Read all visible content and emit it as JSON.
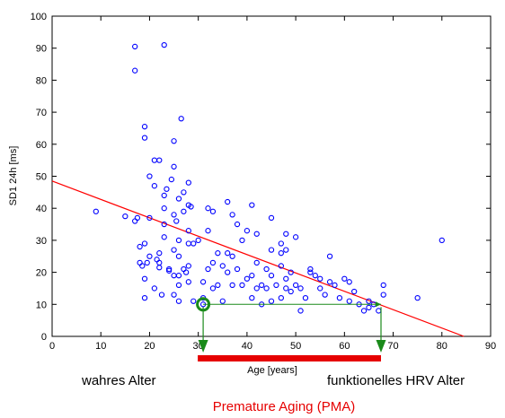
{
  "chart_data": {
    "type": "scatter",
    "xlabel": "Age [years]",
    "ylabel": "SD1 24h [ms]",
    "xlim": [
      0,
      90
    ],
    "ylim": [
      0,
      100
    ],
    "xticks": [
      "0",
      "10",
      "20",
      "30",
      "40",
      "50",
      "60",
      "70",
      "80",
      "90"
    ],
    "yticks": [
      "0",
      "10",
      "20",
      "30",
      "40",
      "50",
      "60",
      "70",
      "80",
      "90",
      "100"
    ],
    "grid": false,
    "colors": {
      "points": "#0000ff",
      "regression": "#ff0000",
      "arrows": "#1a8a1a",
      "pma_bar": "#e60000"
    },
    "regression": {
      "x": [
        0,
        84.5
      ],
      "y": [
        48.5,
        0
      ]
    },
    "highlight_point": {
      "x": 31,
      "y": 10
    },
    "arrow_target": {
      "x": 67.5,
      "y": 10
    },
    "pma_range": [
      31,
      67.5
    ],
    "annotations": {
      "true_age": "wahres Alter",
      "hrv_age": "funktionelles HRV Alter",
      "pma": "Premature Aging (PMA)"
    },
    "points": [
      [
        9,
        39
      ],
      [
        15,
        37.5
      ],
      [
        17,
        90.5
      ],
      [
        17,
        83
      ],
      [
        17,
        36
      ],
      [
        17.5,
        37
      ],
      [
        18,
        28
      ],
      [
        18,
        23
      ],
      [
        18.5,
        22
      ],
      [
        19,
        65.5
      ],
      [
        19,
        62
      ],
      [
        19,
        29
      ],
      [
        19,
        18
      ],
      [
        19,
        12
      ],
      [
        19.5,
        23
      ],
      [
        20,
        37
      ],
      [
        20,
        25
      ],
      [
        20,
        50
      ],
      [
        21,
        55
      ],
      [
        21,
        47
      ],
      [
        21,
        15
      ],
      [
        21.5,
        24
      ],
      [
        22,
        55
      ],
      [
        22,
        26
      ],
      [
        22,
        23
      ],
      [
        22,
        21.5
      ],
      [
        22.5,
        13
      ],
      [
        23,
        91
      ],
      [
        23,
        44
      ],
      [
        23,
        40
      ],
      [
        23,
        35
      ],
      [
        23,
        31
      ],
      [
        23.5,
        46
      ],
      [
        24,
        21
      ],
      [
        24,
        20.5
      ],
      [
        24.5,
        49
      ],
      [
        25,
        61
      ],
      [
        25,
        53
      ],
      [
        25,
        38
      ],
      [
        25,
        27
      ],
      [
        25,
        19
      ],
      [
        25,
        13
      ],
      [
        25.5,
        36
      ],
      [
        26,
        43
      ],
      [
        26,
        30
      ],
      [
        26,
        25
      ],
      [
        26,
        19
      ],
      [
        26,
        16
      ],
      [
        26,
        11
      ],
      [
        26.5,
        68
      ],
      [
        27,
        45
      ],
      [
        27,
        39
      ],
      [
        27,
        21
      ],
      [
        27.5,
        20
      ],
      [
        28,
        48
      ],
      [
        28,
        41
      ],
      [
        28,
        33
      ],
      [
        28,
        29
      ],
      [
        28,
        22
      ],
      [
        28,
        17
      ],
      [
        28.5,
        40.5
      ],
      [
        29,
        29
      ],
      [
        29,
        11
      ],
      [
        30,
        30
      ],
      [
        31,
        10
      ],
      [
        31,
        12
      ],
      [
        31,
        17
      ],
      [
        32,
        40
      ],
      [
        32,
        33
      ],
      [
        32,
        21
      ],
      [
        33,
        39
      ],
      [
        33,
        23
      ],
      [
        33,
        15
      ],
      [
        34,
        26
      ],
      [
        34,
        16
      ],
      [
        35,
        22
      ],
      [
        35,
        11
      ],
      [
        36,
        42
      ],
      [
        36,
        26
      ],
      [
        36,
        20
      ],
      [
        37,
        38
      ],
      [
        37,
        25
      ],
      [
        37,
        16
      ],
      [
        38,
        35
      ],
      [
        38,
        21
      ],
      [
        39,
        30
      ],
      [
        39,
        16
      ],
      [
        40,
        33
      ],
      [
        40,
        18
      ],
      [
        41,
        41
      ],
      [
        41,
        19
      ],
      [
        41,
        12
      ],
      [
        42,
        32
      ],
      [
        42,
        23
      ],
      [
        42,
        15
      ],
      [
        43,
        16
      ],
      [
        43,
        10
      ],
      [
        44,
        21
      ],
      [
        44,
        15
      ],
      [
        45,
        37
      ],
      [
        45,
        27
      ],
      [
        45,
        19
      ],
      [
        45,
        11
      ],
      [
        46,
        16
      ],
      [
        47,
        29
      ],
      [
        47,
        26
      ],
      [
        47,
        22
      ],
      [
        47,
        12
      ],
      [
        48,
        32
      ],
      [
        48,
        27
      ],
      [
        48,
        18
      ],
      [
        48,
        15
      ],
      [
        49,
        20
      ],
      [
        49,
        14
      ],
      [
        50,
        31
      ],
      [
        50,
        16
      ],
      [
        51,
        15
      ],
      [
        51,
        8
      ],
      [
        52,
        12
      ],
      [
        53,
        21
      ],
      [
        53,
        20
      ],
      [
        54,
        19
      ],
      [
        55,
        18
      ],
      [
        55,
        15
      ],
      [
        56,
        13
      ],
      [
        57,
        25
      ],
      [
        57,
        17
      ],
      [
        58,
        16
      ],
      [
        59,
        12
      ],
      [
        60,
        18
      ],
      [
        61,
        17
      ],
      [
        61,
        11
      ],
      [
        62,
        14
      ],
      [
        63,
        10
      ],
      [
        64,
        8
      ],
      [
        65,
        11
      ],
      [
        65,
        9
      ],
      [
        66,
        10
      ],
      [
        67,
        8
      ],
      [
        68,
        16
      ],
      [
        68,
        13
      ],
      [
        75,
        12
      ],
      [
        80,
        30
      ]
    ]
  }
}
